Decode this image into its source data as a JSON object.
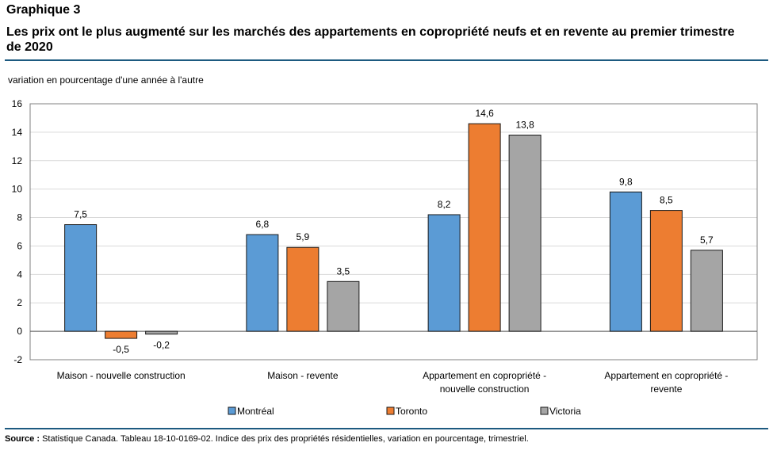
{
  "header": {
    "graph_label": "Graphique 3",
    "title": "Les prix ont le plus augmenté sur les marchés des appartements en copropriété neufs et en revente au premier trimestre de 2020"
  },
  "footer": {
    "source_label": "Source :",
    "source_text": "Statistique Canada. Tableau 18-10-0169-02. Indice des prix des propriétés résidentielles, variation en pourcentage, trimestriel."
  },
  "chart_data": {
    "type": "bar",
    "title": "",
    "ylabel": "variation en pourcentage d'une année à l'autre",
    "xlabel": "",
    "ylim": [
      -2,
      16
    ],
    "yticks": [
      -2,
      0,
      2,
      4,
      6,
      8,
      10,
      12,
      14,
      16
    ],
    "grid": true,
    "legend_position": "bottom",
    "categories": [
      [
        "Maison - nouvelle construction"
      ],
      [
        "Maison - revente"
      ],
      [
        "Appartement en copropriété -",
        "nouvelle construction"
      ],
      [
        "Appartement en copropriété -",
        "revente"
      ]
    ],
    "series": [
      {
        "name": "Montréal",
        "color": "#5b9bd5",
        "values": [
          7.5,
          6.8,
          8.2,
          9.8
        ],
        "labels": [
          "7,5",
          "6,8",
          "8,2",
          "9,8"
        ]
      },
      {
        "name": "Toronto",
        "color": "#ed7d31",
        "values": [
          -0.5,
          5.9,
          14.6,
          8.5
        ],
        "labels": [
          "-0,5",
          "5,9",
          "14,6",
          "8,5"
        ]
      },
      {
        "name": "Victoria",
        "color": "#a5a5a5",
        "values": [
          -0.2,
          3.5,
          13.8,
          5.7
        ],
        "labels": [
          "-0,2",
          "3,5",
          "13,8",
          "5,7"
        ]
      }
    ]
  }
}
